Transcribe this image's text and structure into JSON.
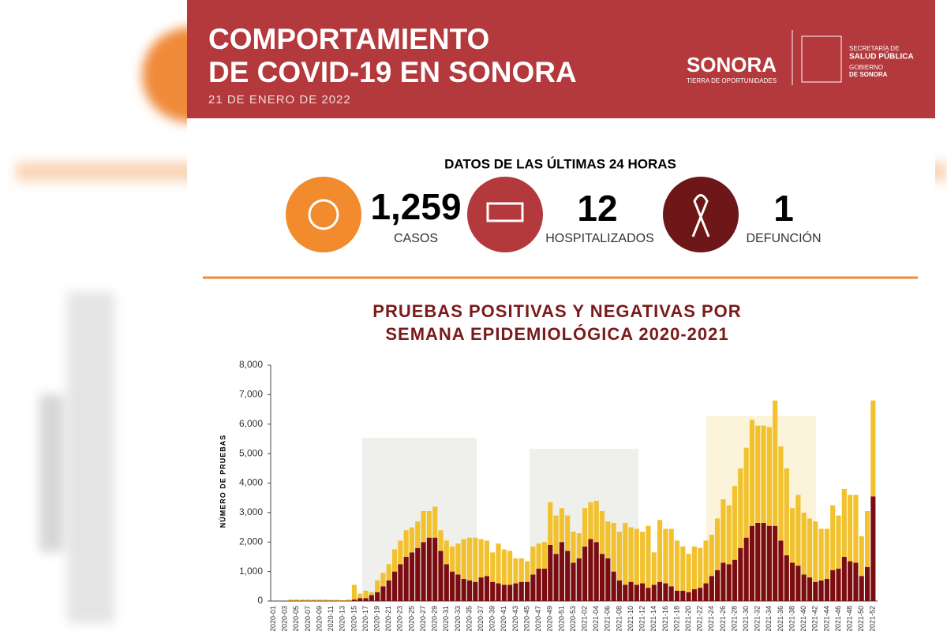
{
  "header": {
    "title_lines": [
      "COMPORTAMIENTO",
      "DE COVID-19 EN SONORA"
    ],
    "date": "21 DE ENERO DE 2022",
    "logo_name": "SONORA",
    "logo_tagline": "TIERRA DE OPORTUNIDADES",
    "secretaria": [
      "SECRETARÍA DE",
      "SALUD PÚBLICA",
      "GOBIERNO",
      "DE SONORA"
    ]
  },
  "stats": {
    "heading": "DATOS DE LAS ÚLTIMAS 24 HORAS",
    "items": [
      {
        "value": "1,259",
        "label": "CASOS"
      },
      {
        "value": "12",
        "label": "HOSPITALIZADOS"
      },
      {
        "value": "1",
        "label": "DEFUNCIÓN"
      }
    ]
  },
  "chart_data": {
    "type": "stacked_bar",
    "title_lines": [
      "PRUEBAS POSITIVAS Y NEGATIVAS POR",
      "SEMANA EPIDEMIOLÓGICA 2020-2021"
    ],
    "y_label": "NÚMERO DE PRUEBAS",
    "categories": [
      "2020-01",
      null,
      "2020-03",
      null,
      "2020-05",
      null,
      "2020-07",
      null,
      "2020-09",
      null,
      "2020-11",
      null,
      "2020-13",
      null,
      "2020-15",
      null,
      "2020-17",
      null,
      "2020-19",
      null,
      "2020-21",
      null,
      "2020-23",
      null,
      "2020-25",
      null,
      "2020-27",
      null,
      "2020-29",
      null,
      "2020-31",
      null,
      "2020-33",
      null,
      "2020-35",
      null,
      "2020-37",
      null,
      "2020-39",
      null,
      "2020-41",
      null,
      "2020-43",
      null,
      "2020-45",
      null,
      "2020-47",
      null,
      "2020-49",
      null,
      "2020-51",
      null,
      "2020-53",
      null,
      "2021-02",
      null,
      "2021-04",
      null,
      "2021-06",
      null,
      "2021-08",
      null,
      "2021-10",
      null,
      "2021-12",
      null,
      "2021-14",
      null,
      "2021-16",
      null,
      "2021-18",
      null,
      "2021-20",
      null,
      "2021-22",
      null,
      "2021-24",
      null,
      "2021-26",
      null,
      "2021-28",
      null,
      "2021-30",
      null,
      "2021-32",
      null,
      "2021-34",
      null,
      "2021-36",
      null,
      "2021-38",
      null,
      "2021-40",
      null,
      "2021-42",
      null,
      "2021-44",
      null,
      "2021-46",
      null,
      "2021-48",
      null,
      "2021-50",
      null,
      "2021-52"
    ],
    "series": [
      {
        "color": "#7b0c10",
        "values": [
          0,
          0,
          0,
          10,
          10,
          10,
          10,
          10,
          10,
          10,
          10,
          10,
          10,
          10,
          50,
          100,
          100,
          200,
          300,
          500,
          700,
          1000,
          1250,
          1500,
          1650,
          1800,
          2000,
          2150,
          2150,
          1700,
          1250,
          1000,
          900,
          750,
          700,
          650,
          800,
          850,
          650,
          600,
          550,
          550,
          600,
          650,
          650,
          900,
          1100,
          1100,
          1900,
          1600,
          2000,
          1700,
          1300,
          1450,
          1850,
          2100,
          2000,
          1600,
          1450,
          1000,
          700,
          550,
          650,
          550,
          600,
          450,
          550,
          650,
          600,
          500,
          350,
          350,
          300,
          400,
          450,
          600,
          850,
          1050,
          1300,
          1250,
          1400,
          1800,
          2150,
          2550,
          2650,
          2650,
          2550,
          2550,
          2050,
          1550,
          1300,
          1200,
          900,
          800,
          650,
          700,
          750,
          1050,
          1100,
          1500,
          1350,
          1300,
          850,
          1150,
          3550
        ]
      },
      {
        "color": "#f2c12e",
        "values": [
          0,
          0,
          0,
          40,
          40,
          40,
          40,
          40,
          40,
          40,
          30,
          30,
          20,
          40,
          500,
          150,
          250,
          100,
          400,
          450,
          550,
          750,
          800,
          900,
          850,
          900,
          1050,
          900,
          1050,
          700,
          800,
          850,
          1050,
          1350,
          1450,
          1500,
          1300,
          1200,
          1000,
          1350,
          1200,
          1150,
          850,
          800,
          700,
          950,
          850,
          900,
          1450,
          1300,
          1150,
          1200,
          1050,
          850,
          1300,
          1250,
          1400,
          1450,
          1250,
          1650,
          1650,
          2100,
          1850,
          1900,
          1750,
          2100,
          1100,
          2100,
          1850,
          1950,
          1700,
          1500,
          1300,
          1450,
          1350,
          1450,
          1400,
          1750,
          2150,
          2000,
          2500,
          2700,
          3050,
          3600,
          3300,
          3300,
          3350,
          4250,
          3200,
          2950,
          1850,
          2400,
          2100,
          2000,
          2050,
          1750,
          1700,
          2200,
          1800,
          2300,
          2250,
          2300,
          1350,
          1900,
          3250
        ]
      }
    ],
    "ylim": [
      0,
      8000
    ],
    "yticks": [
      0,
      {
        "value": 1000,
        "label": "1,000"
      },
      {
        "value": 2000,
        "label": "2,000"
      },
      {
        "value": 3000,
        "label": "3,000"
      },
      {
        "value": 4000,
        "label": "4,000"
      },
      {
        "value": 5000,
        "label": "5,000"
      },
      {
        "value": 6000,
        "label": "6,000"
      },
      {
        "value": 7000,
        "label": "7,000"
      },
      {
        "value": 8000,
        "label": "8,000"
      }
    ],
    "grid": false
  }
}
